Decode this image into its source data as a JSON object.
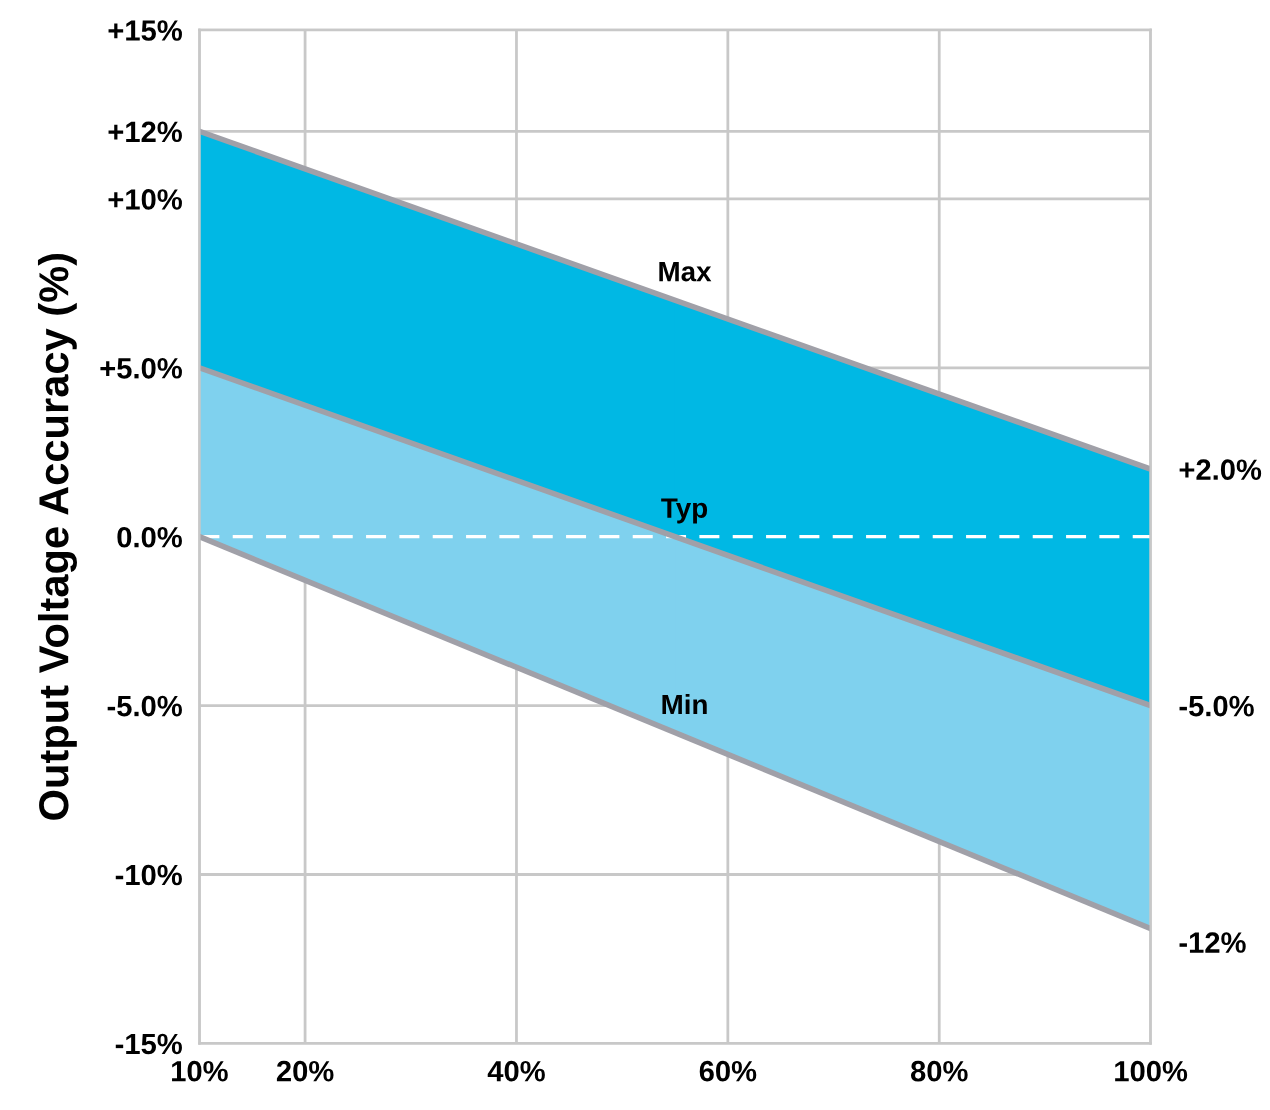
{
  "chart_data": {
    "type": "line",
    "ylabel": "Output Voltage Accuracy (%)",
    "x": [
      10,
      100
    ],
    "series": [
      {
        "name": "Max",
        "color": "#a0a0a8",
        "colors": [
          "#00b8e4",
          "#00b8e4"
        ],
        "values": [
          12,
          2
        ],
        "lower": [
          5,
          -5
        ],
        "upper": [
          12,
          2
        ]
      },
      {
        "name": "Typ",
        "color": "#a0a0a8",
        "colors": [
          "#7fd1ee",
          "#7fd1ee"
        ],
        "values": [
          5,
          -5
        ],
        "lower": [
          0,
          -11.6
        ],
        "upper": [
          5,
          -5
        ]
      },
      {
        "name": "Min",
        "color": "#a0a0a8",
        "values": [
          0,
          -11.6
        ]
      }
    ],
    "xlim": [
      10,
      100
    ],
    "xticks": [
      {
        "value": 10,
        "label": "10%"
      },
      {
        "value": 20,
        "label": "20%"
      },
      {
        "value": 40,
        "label": "40%"
      },
      {
        "value": 60,
        "label": "60%"
      },
      {
        "value": 80,
        "label": "80%"
      },
      {
        "value": 100,
        "label": "100%"
      }
    ],
    "ylim": [
      -15,
      15
    ],
    "yticks": [
      {
        "value": -15,
        "label": "-15%"
      },
      {
        "value": -10,
        "label": "-10%"
      },
      {
        "value": -5,
        "label": "-5.0%"
      },
      {
        "value": 0,
        "label": "0.0%"
      },
      {
        "value": 5,
        "label": "+5.0%"
      },
      {
        "value": 10,
        "label": "+10%"
      },
      {
        "value": 12,
        "label": "+12%"
      },
      {
        "value": 15,
        "label": "+15%"
      }
    ],
    "y2lim": [
      -15,
      15
    ],
    "y2ticks": [
      {
        "value": -12,
        "label": "-12%"
      },
      {
        "value": -5,
        "label": "-5.0%"
      },
      {
        "value": 2,
        "label": "+2.0%"
      }
    ],
    "ref_lines": [
      {
        "axis": "y",
        "value": 0,
        "color": "#ffffff",
        "line_style": "dashed"
      }
    ],
    "grid": true,
    "legend": false
  }
}
